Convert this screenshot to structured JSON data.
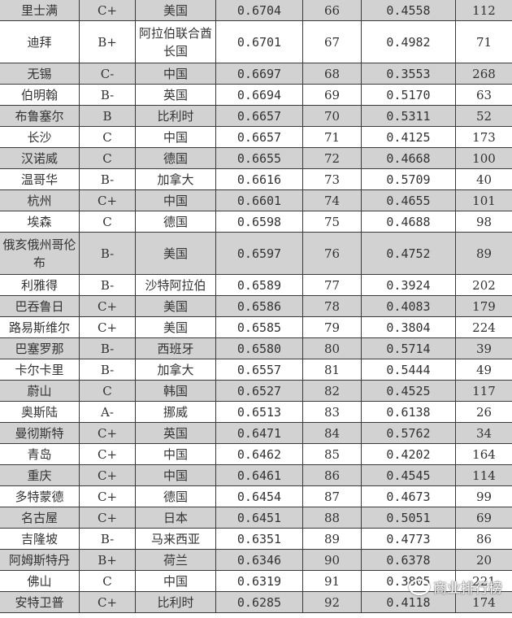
{
  "table": {
    "rows": [
      {
        "city": "里士满",
        "grade": "C+",
        "country": "美国",
        "score": "0.6704",
        "rank": "66",
        "score2": "0.4558",
        "value": "112",
        "shaded": true
      },
      {
        "city": "迪拜",
        "grade": "B+",
        "country": "阿拉伯联合酋长国",
        "score": "0.6701",
        "rank": "67",
        "score2": "0.4982",
        "value": "71",
        "shaded": false,
        "tall": true
      },
      {
        "city": "无锡",
        "grade": "C-",
        "country": "中国",
        "score": "0.6697",
        "rank": "68",
        "score2": "0.3553",
        "value": "268",
        "shaded": true
      },
      {
        "city": "伯明翰",
        "grade": "B-",
        "country": "英国",
        "score": "0.6694",
        "rank": "69",
        "score2": "0.5170",
        "value": "63",
        "shaded": false
      },
      {
        "city": "布鲁塞尔",
        "grade": "B",
        "country": "比利时",
        "score": "0.6657",
        "rank": "70",
        "score2": "0.5311",
        "value": "52",
        "shaded": true
      },
      {
        "city": "长沙",
        "grade": "C",
        "country": "中国",
        "score": "0.6657",
        "rank": "71",
        "score2": "0.4125",
        "value": "173",
        "shaded": false
      },
      {
        "city": "汉诺威",
        "grade": "C",
        "country": "德国",
        "score": "0.6655",
        "rank": "72",
        "score2": "0.4668",
        "value": "100",
        "shaded": true
      },
      {
        "city": "温哥华",
        "grade": "B-",
        "country": "加拿大",
        "score": "0.6616",
        "rank": "73",
        "score2": "0.5709",
        "value": "40",
        "shaded": false
      },
      {
        "city": "杭州",
        "grade": "C+",
        "country": "中国",
        "score": "0.6601",
        "rank": "74",
        "score2": "0.4655",
        "value": "101",
        "shaded": true
      },
      {
        "city": "埃森",
        "grade": "C",
        "country": "德国",
        "score": "0.6598",
        "rank": "75",
        "score2": "0.4688",
        "value": "98",
        "shaded": false
      },
      {
        "city": "俄亥俄州哥伦布",
        "grade": "B-",
        "country": "美国",
        "score": "0.6597",
        "rank": "76",
        "score2": "0.4752",
        "value": "89",
        "shaded": true,
        "tall": true
      },
      {
        "city": "利雅得",
        "grade": "B-",
        "country": "沙特阿拉伯",
        "score": "0.6589",
        "rank": "77",
        "score2": "0.3924",
        "value": "202",
        "shaded": false
      },
      {
        "city": "巴吞鲁日",
        "grade": "C+",
        "country": "美国",
        "score": "0.6586",
        "rank": "78",
        "score2": "0.4083",
        "value": "179",
        "shaded": true
      },
      {
        "city": "路易斯维尔",
        "grade": "C+",
        "country": "美国",
        "score": "0.6585",
        "rank": "79",
        "score2": "0.3804",
        "value": "224",
        "shaded": false
      },
      {
        "city": "巴塞罗那",
        "grade": "B-",
        "country": "西班牙",
        "score": "0.6580",
        "rank": "80",
        "score2": "0.5714",
        "value": "39",
        "shaded": true
      },
      {
        "city": "卡尔卡里",
        "grade": "B-",
        "country": "加拿大",
        "score": "0.6557",
        "rank": "81",
        "score2": "0.5444",
        "value": "49",
        "shaded": false
      },
      {
        "city": "蔚山",
        "grade": "C",
        "country": "韩国",
        "score": "0.6527",
        "rank": "82",
        "score2": "0.4525",
        "value": "117",
        "shaded": true
      },
      {
        "city": "奥斯陆",
        "grade": "A-",
        "country": "挪威",
        "score": "0.6513",
        "rank": "83",
        "score2": "0.6138",
        "value": "26",
        "shaded": false
      },
      {
        "city": "曼彻斯特",
        "grade": "C+",
        "country": "英国",
        "score": "0.6471",
        "rank": "84",
        "score2": "0.5762",
        "value": "34",
        "shaded": true
      },
      {
        "city": "青岛",
        "grade": "C+",
        "country": "中国",
        "score": "0.6462",
        "rank": "85",
        "score2": "0.4202",
        "value": "164",
        "shaded": false
      },
      {
        "city": "重庆",
        "grade": "C+",
        "country": "中国",
        "score": "0.6461",
        "rank": "86",
        "score2": "0.4545",
        "value": "114",
        "shaded": true
      },
      {
        "city": "多特蒙德",
        "grade": "C+",
        "country": "德国",
        "score": "0.6454",
        "rank": "87",
        "score2": "0.4673",
        "value": "99",
        "shaded": false
      },
      {
        "city": "名古屋",
        "grade": "C+",
        "country": "日本",
        "score": "0.6451",
        "rank": "88",
        "score2": "0.5051",
        "value": "69",
        "shaded": true
      },
      {
        "city": "吉隆坡",
        "grade": "B-",
        "country": "马来西亚",
        "score": "0.6351",
        "rank": "89",
        "score2": "0.4773",
        "value": "86",
        "shaded": false
      },
      {
        "city": "阿姆斯特丹",
        "grade": "B+",
        "country": "荷兰",
        "score": "0.6346",
        "rank": "90",
        "score2": "0.6378",
        "value": "20",
        "shaded": true
      },
      {
        "city": "佛山",
        "grade": "C",
        "country": "中国",
        "score": "0.6319",
        "rank": "91",
        "score2": "0.3805",
        "value": "221",
        "shaded": false
      },
      {
        "city": "安特卫普",
        "grade": "C+",
        "country": "比利时",
        "score": "0.6285",
        "rank": "92",
        "score2": "0.4118",
        "value": "174",
        "shaded": true
      }
    ]
  },
  "colors": {
    "shaded_row": "#d2d2d2",
    "border": "#3a3a3a"
  },
  "watermark": {
    "text": "商业排行榜",
    "icon": "wechat-icon"
  }
}
